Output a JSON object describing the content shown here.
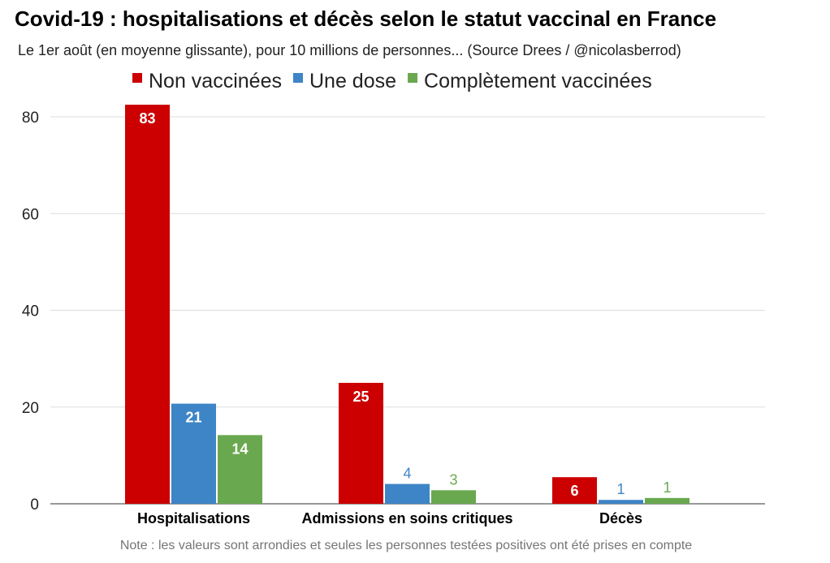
{
  "chart_data": {
    "type": "bar",
    "title": "Covid-19 : hospitalisations et décès selon le statut vaccinal en France",
    "subtitle": "Le 1er août (en moyenne glissante), pour 10 millions de personnes... (Source Drees / @nicolasberrod)",
    "note": "Note : les valeurs sont arrondies et seules les personnes testées positives ont été prises en compte",
    "categories": [
      "Hospitalisations",
      "Admissions en soins critiques",
      "Décès"
    ],
    "series": [
      {
        "name": "Non vaccinées",
        "color": "#cc0000",
        "values": [
          83,
          25,
          6
        ],
        "plot_values": [
          82.5,
          25,
          5.5
        ]
      },
      {
        "name": "Une dose",
        "color": "#3d85c6",
        "values": [
          21,
          4,
          1
        ],
        "plot_values": [
          20.7,
          4.1,
          0.8
        ]
      },
      {
        "name": "Complètement vaccinées",
        "color": "#6aa84f",
        "values": [
          14,
          3,
          1
        ],
        "plot_values": [
          14.2,
          2.8,
          1.2
        ]
      }
    ],
    "xlabel": "",
    "ylabel": "",
    "ylim": [
      0,
      80
    ],
    "yticks": [
      0,
      20,
      40,
      60,
      80
    ],
    "grid": true,
    "legend_position": "top-center"
  }
}
